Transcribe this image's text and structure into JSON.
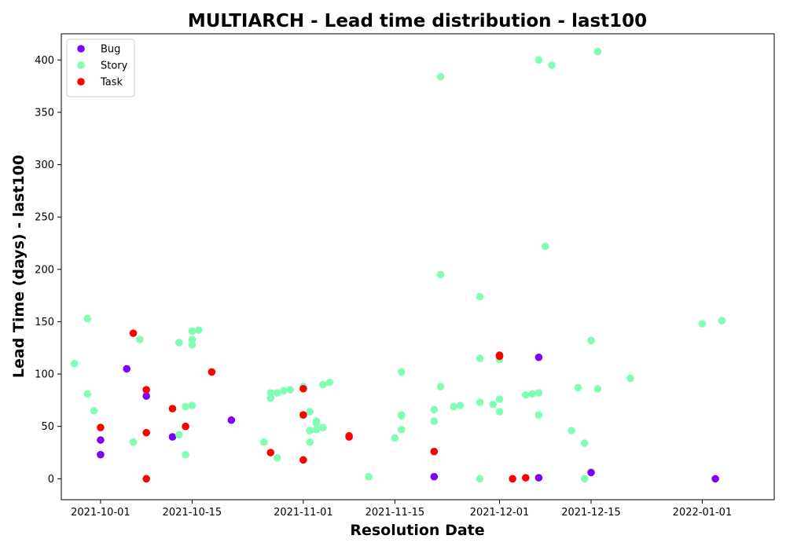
{
  "chart_data": {
    "type": "scatter",
    "title": "MULTIARCH - Lead time distribution - last100",
    "xlabel": "Resolution Date",
    "ylabel": "Lead Time (days) - last100",
    "x_type": "date",
    "xlim": [
      "2021-09-25",
      "2022-01-12"
    ],
    "ylim": [
      -20,
      425
    ],
    "x_ticks": [
      "2021-10-01",
      "2021-10-15",
      "2021-11-01",
      "2021-11-15",
      "2021-12-01",
      "2021-12-15",
      "2022-01-01"
    ],
    "y_ticks": [
      0,
      50,
      100,
      150,
      200,
      250,
      300,
      350,
      400
    ],
    "legend_position": "upper-left",
    "grid": false,
    "series": [
      {
        "name": "Bug",
        "color": "#8000ff",
        "points": [
          {
            "x": "2021-10-01",
            "y": 37
          },
          {
            "x": "2021-10-01",
            "y": 23
          },
          {
            "x": "2021-10-05",
            "y": 105
          },
          {
            "x": "2021-10-08",
            "y": 79
          },
          {
            "x": "2021-10-12",
            "y": 40
          },
          {
            "x": "2021-10-21",
            "y": 56
          },
          {
            "x": "2021-11-21",
            "y": 2
          },
          {
            "x": "2021-12-07",
            "y": 116
          },
          {
            "x": "2021-12-07",
            "y": 1
          },
          {
            "x": "2021-12-15",
            "y": 6
          },
          {
            "x": "2022-01-03",
            "y": 0
          }
        ]
      },
      {
        "name": "Story",
        "color": "#80ffb4",
        "points": [
          {
            "x": "2021-09-27",
            "y": 110
          },
          {
            "x": "2021-09-29",
            "y": 153
          },
          {
            "x": "2021-09-29",
            "y": 81
          },
          {
            "x": "2021-09-30",
            "y": 65
          },
          {
            "x": "2021-10-06",
            "y": 35
          },
          {
            "x": "2021-10-07",
            "y": 133
          },
          {
            "x": "2021-10-12",
            "y": 67
          },
          {
            "x": "2021-10-13",
            "y": 130
          },
          {
            "x": "2021-10-13",
            "y": 42
          },
          {
            "x": "2021-10-14",
            "y": 69
          },
          {
            "x": "2021-10-14",
            "y": 23
          },
          {
            "x": "2021-10-15",
            "y": 141
          },
          {
            "x": "2021-10-16",
            "y": 142
          },
          {
            "x": "2021-10-15",
            "y": 133
          },
          {
            "x": "2021-10-15",
            "y": 128
          },
          {
            "x": "2021-10-15",
            "y": 70
          },
          {
            "x": "2021-10-26",
            "y": 35
          },
          {
            "x": "2021-10-27",
            "y": 82
          },
          {
            "x": "2021-10-27",
            "y": 77
          },
          {
            "x": "2021-10-28",
            "y": 82
          },
          {
            "x": "2021-10-28",
            "y": 20
          },
          {
            "x": "2021-10-29",
            "y": 84
          },
          {
            "x": "2021-10-30",
            "y": 85
          },
          {
            "x": "2021-11-01",
            "y": 88
          },
          {
            "x": "2021-11-02",
            "y": 64
          },
          {
            "x": "2021-11-02",
            "y": 46
          },
          {
            "x": "2021-11-02",
            "y": 35
          },
          {
            "x": "2021-11-03",
            "y": 55
          },
          {
            "x": "2021-11-03",
            "y": 47
          },
          {
            "x": "2021-11-03",
            "y": 53
          },
          {
            "x": "2021-11-04",
            "y": 90
          },
          {
            "x": "2021-11-04",
            "y": 49
          },
          {
            "x": "2021-11-05",
            "y": 92
          },
          {
            "x": "2021-11-11",
            "y": 2
          },
          {
            "x": "2021-11-15",
            "y": 39
          },
          {
            "x": "2021-11-16",
            "y": 102
          },
          {
            "x": "2021-11-16",
            "y": 61
          },
          {
            "x": "2021-11-16",
            "y": 60
          },
          {
            "x": "2021-11-16",
            "y": 47
          },
          {
            "x": "2021-11-21",
            "y": 66
          },
          {
            "x": "2021-11-22",
            "y": 195
          },
          {
            "x": "2021-11-22",
            "y": 88
          },
          {
            "x": "2021-11-21",
            "y": 55
          },
          {
            "x": "2021-11-22",
            "y": 384
          },
          {
            "x": "2021-11-24",
            "y": 69
          },
          {
            "x": "2021-11-25",
            "y": 70
          },
          {
            "x": "2021-11-28",
            "y": 115
          },
          {
            "x": "2021-11-28",
            "y": 174
          },
          {
            "x": "2021-11-28",
            "y": 73
          },
          {
            "x": "2021-11-28",
            "y": 0
          },
          {
            "x": "2021-11-30",
            "y": 71
          },
          {
            "x": "2021-12-01",
            "y": 114
          },
          {
            "x": "2021-12-01",
            "y": 76
          },
          {
            "x": "2021-12-01",
            "y": 64
          },
          {
            "x": "2021-12-05",
            "y": 80
          },
          {
            "x": "2021-12-06",
            "y": 81
          },
          {
            "x": "2021-12-07",
            "y": 82
          },
          {
            "x": "2021-12-07",
            "y": 61
          },
          {
            "x": "2021-12-07",
            "y": 400
          },
          {
            "x": "2021-12-08",
            "y": 222
          },
          {
            "x": "2021-12-09",
            "y": 395
          },
          {
            "x": "2021-12-12",
            "y": 46
          },
          {
            "x": "2021-12-13",
            "y": 87
          },
          {
            "x": "2021-12-14",
            "y": 34
          },
          {
            "x": "2021-12-14",
            "y": 0
          },
          {
            "x": "2021-12-15",
            "y": 132
          },
          {
            "x": "2021-12-16",
            "y": 86
          },
          {
            "x": "2021-12-16",
            "y": 408
          },
          {
            "x": "2021-12-21",
            "y": 96
          },
          {
            "x": "2022-01-01",
            "y": 148
          },
          {
            "x": "2022-01-04",
            "y": 151
          }
        ]
      },
      {
        "name": "Task",
        "color": "#ff0000",
        "points": [
          {
            "x": "2021-10-01",
            "y": 49
          },
          {
            "x": "2021-10-06",
            "y": 139
          },
          {
            "x": "2021-10-08",
            "y": 85
          },
          {
            "x": "2021-10-08",
            "y": 44
          },
          {
            "x": "2021-10-08",
            "y": 0
          },
          {
            "x": "2021-10-12",
            "y": 67
          },
          {
            "x": "2021-10-14",
            "y": 50
          },
          {
            "x": "2021-10-18",
            "y": 102
          },
          {
            "x": "2021-10-27",
            "y": 25
          },
          {
            "x": "2021-11-01",
            "y": 86
          },
          {
            "x": "2021-11-01",
            "y": 61
          },
          {
            "x": "2021-11-01",
            "y": 18
          },
          {
            "x": "2021-11-08",
            "y": 41
          },
          {
            "x": "2021-11-08",
            "y": 40
          },
          {
            "x": "2021-11-21",
            "y": 26
          },
          {
            "x": "2021-12-01",
            "y": 118
          },
          {
            "x": "2021-12-01",
            "y": 117
          },
          {
            "x": "2021-12-03",
            "y": 0
          },
          {
            "x": "2021-12-05",
            "y": 1
          }
        ]
      }
    ]
  }
}
